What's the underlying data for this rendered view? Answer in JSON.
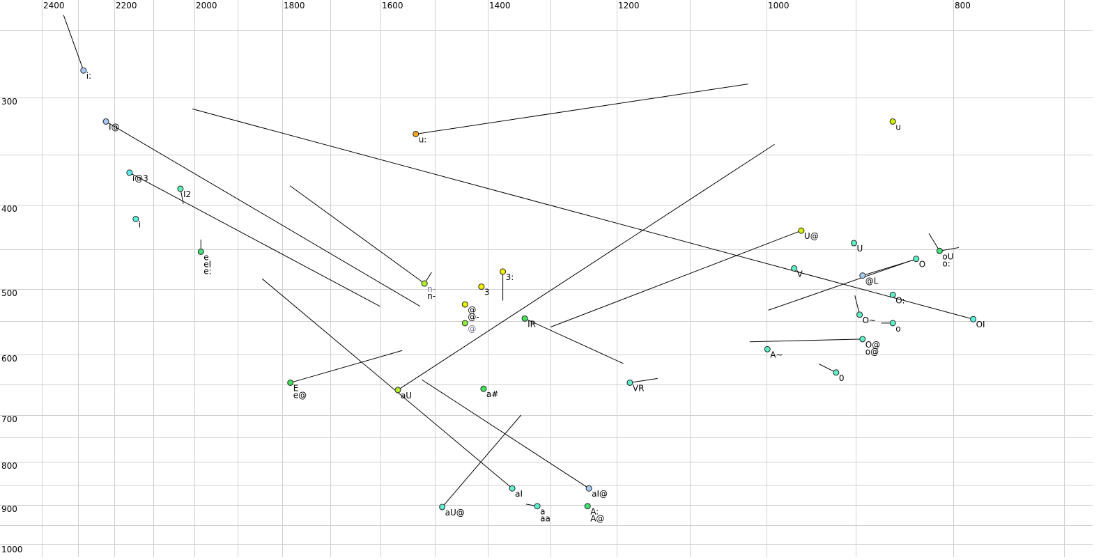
{
  "chart_data": {
    "type": "scatter",
    "title": "",
    "xlabel": "",
    "ylabel": "",
    "x_reversed": true,
    "y_reversed": true,
    "xlim": [
      2450,
      700
    ],
    "ylim": [
      240,
      1000
    ],
    "grid": true,
    "x_tick_labels": [
      "2400",
      "2200",
      "2000",
      "1800",
      "1600",
      "1400",
      "1200",
      "1000",
      "800"
    ],
    "y_tick_labels": [
      "300",
      "400",
      "500",
      "600",
      "700",
      "800",
      "900",
      "1000"
    ],
    "colors": {
      "blue": "#a8ccf4",
      "cyan": "#5ef0d0",
      "green": "#44e07a",
      "lime": "#b4f02a",
      "yellow": "#f4f000",
      "orange": "#f4a81c",
      "grey_label": "#7a7a9a"
    },
    "vowels": [
      {
        "labels": [
          "i:"
        ],
        "f2": 2285,
        "f1": 280,
        "end": [
          2340,
          239
        ],
        "color": "#a8ccf4"
      },
      {
        "labels": [
          "I@"
        ],
        "f2": 2223,
        "f1": 321,
        "end": [
          1527,
          527
        ],
        "color": "#a8ccf4"
      },
      {
        "labels": [
          "i@3"
        ],
        "f2": 2161,
        "f1": 368,
        "end": [
          1601,
          527
        ],
        "color": "#5ef0f0"
      },
      {
        "labels": [
          "I2"
        ],
        "f2": 2034,
        "f1": 384,
        "end": [
          2027,
          399
        ],
        "color": "#5ef0b8"
      },
      {
        "labels": [
          "i"
        ],
        "f2": 2145,
        "f1": 416,
        "end": null,
        "color": "#5ef0e0"
      },
      {
        "labels": [
          "e",
          "eI",
          "e:"
        ],
        "f2": 1985,
        "f1": 453,
        "end": [
          1985,
          439
        ],
        "color": "#44e07a"
      },
      {
        "labels": [
          "u:"
        ],
        "f2": 1535,
        "f1": 332,
        "end": [
          1024,
          290
        ],
        "color": "#f4a81c"
      },
      {
        "labels": [
          "u"
        ],
        "f2": 862,
        "f1": 321,
        "end": null,
        "color": "#d4f000"
      },
      {
        "labels": [
          "n-",
          "n-"
        ],
        "label_colors": [
          "#7a7a9a",
          "#000000"
        ],
        "f2": 1519,
        "f1": 493,
        "end": [
          1784,
          381
        ],
        "end2": [
          1506,
          479
        ],
        "color": "#b4f02a"
      },
      {
        "labels": [
          "3"
        ],
        "f2": 1412,
        "f1": 497,
        "end": null,
        "color": "#f4f000"
      },
      {
        "labels": [
          "3:"
        ],
        "f2": 1376,
        "f1": 478,
        "end": [
          1376,
          518
        ],
        "color": "#f4f000"
      },
      {
        "labels": [
          "@",
          "@-"
        ],
        "f2": 1443,
        "f1": 524,
        "end": null,
        "color": "#e4f000"
      },
      {
        "labels": [
          "@"
        ],
        "label_colors": [
          "#7a7a9a"
        ],
        "f2": 1443,
        "f1": 553,
        "end": null,
        "color": "#88ec3c"
      },
      {
        "labels": [
          "IR"
        ],
        "f2": 1341,
        "f1": 546,
        "end": [
          1191,
          615
        ],
        "color": "#44e05a"
      },
      {
        "labels": [
          "aU"
        ],
        "f2": 1568,
        "f1": 659,
        "end": [
          991,
          341
        ],
        "color": "#b4f02a"
      },
      {
        "labels": [
          "a#"
        ],
        "f2": 1408,
        "f1": 657,
        "end": null,
        "color": "#44e05a"
      },
      {
        "labels": [
          "E",
          "e@"
        ],
        "f2": 1783,
        "f1": 647,
        "end": [
          1560,
          594
        ],
        "color": "#44e05a"
      },
      {
        "labels": [
          "aI"
        ],
        "f2": 1361,
        "f1": 859,
        "end": [
          1845,
          487
        ],
        "color": "#5ef0d0"
      },
      {
        "labels": [
          "aI@"
        ],
        "f2": 1242,
        "f1": 859,
        "end": [
          1524,
          642
        ],
        "color": "#a8ccf4"
      },
      {
        "labels": [
          "aU@"
        ],
        "f2": 1486,
        "f1": 905,
        "end": [
          1347,
          700
        ],
        "color": "#5ef0d0"
      },
      {
        "labels": [
          "a",
          "aa"
        ],
        "f2": 1321,
        "f1": 903,
        "end": [
          1339,
          898
        ],
        "color": "#5ef0d0"
      },
      {
        "labels": [
          "A:",
          "A@"
        ],
        "f2": 1244,
        "f1": 903,
        "end": [
          1245,
          898
        ],
        "color": "#44e07a"
      },
      {
        "labels": [
          "VR"
        ],
        "f2": 1182,
        "f1": 647,
        "end": [
          1144,
          640
        ],
        "color": "#5ef0d0"
      },
      {
        "labels": [
          "U@"
        ],
        "f2": 961,
        "f1": 429,
        "end": [
          1300,
          559
        ],
        "color": "#d4f000"
      },
      {
        "labels": [
          "U"
        ],
        "f2": 902,
        "f1": 443,
        "end": null,
        "color": "#5ef0c8"
      },
      {
        "labels": [
          "V"
        ],
        "f2": 969,
        "f1": 474,
        "end": null,
        "color": "#5ef0c8"
      },
      {
        "labels": [
          "@L"
        ],
        "f2": 893,
        "f1": 483,
        "end": [
          837,
          462
        ],
        "color": "#a8ccf4"
      },
      {
        "labels": [
          "O"
        ],
        "f2": 838,
        "f1": 462,
        "end": [
          998,
          533
        ],
        "color": "#5ef0c8"
      },
      {
        "labels": [
          "oU",
          "o:"
        ],
        "f2": 814,
        "f1": 452,
        "end": [
          825,
          432
        ],
        "end2": [
          795,
          448
        ],
        "color": "#44e07a"
      },
      {
        "labels": [
          "O:"
        ],
        "f2": 862,
        "f1": 509,
        "end": null,
        "color": "#5ef0c8"
      },
      {
        "labels": [
          "OI"
        ],
        "f2": 782,
        "f1": 547,
        "end": [
          2005,
          310
        ],
        "color": "#5ef0e0"
      },
      {
        "labels": [
          "O~"
        ],
        "f2": 896,
        "f1": 540,
        "end": [
          901,
          510
        ],
        "color": "#5ef0c8"
      },
      {
        "labels": [
          "o"
        ],
        "f2": 862,
        "f1": 553,
        "end": [
          874,
          553
        ],
        "color": "#5ef0c8"
      },
      {
        "labels": [
          "O@",
          "o@"
        ],
        "f2": 893,
        "f1": 577,
        "end": [
          1022,
          581
        ],
        "color": "#5ef0c8"
      },
      {
        "labels": [
          "A~"
        ],
        "f2": 999,
        "f1": 592,
        "end": null,
        "color": "#5ef0c8"
      },
      {
        "labels": [
          "0"
        ],
        "f2": 922,
        "f1": 630,
        "end": [
          941,
          616
        ],
        "color": "#5ef0c8"
      }
    ]
  }
}
